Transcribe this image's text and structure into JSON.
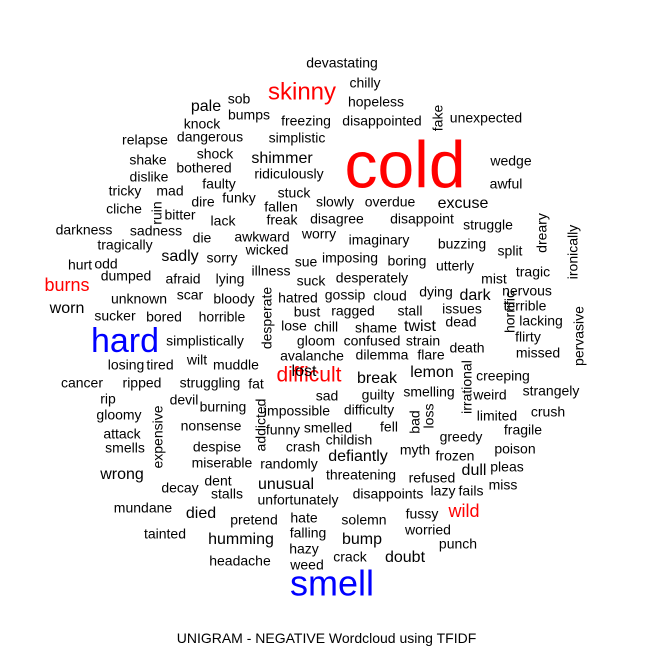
{
  "chart_data": {
    "type": "wordcloud",
    "caption": "UNIGRAM - NEGATIVE Wordcloud using TFIDF",
    "colors": {
      "large": "#ff0000",
      "extra_large": "#0000ff",
      "default": "#000000"
    },
    "words": [
      {
        "text": "cold",
        "color": "red",
        "weight": 6
      },
      {
        "text": "smell",
        "color": "blue",
        "weight": 5
      },
      {
        "text": "hard",
        "color": "blue",
        "weight": 5
      },
      {
        "text": "skinny",
        "color": "red",
        "weight": 4
      },
      {
        "text": "difficult",
        "color": "red",
        "weight": 4
      },
      {
        "text": "burns",
        "color": "red",
        "weight": 3.5
      },
      {
        "text": "wild",
        "color": "red",
        "weight": 3.5
      },
      {
        "text": "devastating",
        "weight": 2
      },
      {
        "text": "chilly",
        "weight": 2
      },
      {
        "text": "hopeless",
        "weight": 2
      },
      {
        "text": "sob",
        "weight": 2
      },
      {
        "text": "pale",
        "weight": 2.5
      },
      {
        "text": "bumps",
        "weight": 2
      },
      {
        "text": "fake",
        "weight": 2
      },
      {
        "text": "unexpected",
        "weight": 2
      },
      {
        "text": "knock",
        "weight": 2
      },
      {
        "text": "freezing",
        "weight": 2
      },
      {
        "text": "disappointed",
        "weight": 2
      },
      {
        "text": "relapse",
        "weight": 2
      },
      {
        "text": "dangerous",
        "weight": 2
      },
      {
        "text": "simplistic",
        "weight": 2
      },
      {
        "text": "shake",
        "weight": 2
      },
      {
        "text": "shock",
        "weight": 2
      },
      {
        "text": "shimmer",
        "weight": 2.5
      },
      {
        "text": "wedge",
        "weight": 2
      },
      {
        "text": "dislike",
        "weight": 2
      },
      {
        "text": "bothered",
        "weight": 2
      },
      {
        "text": "ridiculously",
        "weight": 2
      },
      {
        "text": "tricky",
        "weight": 2
      },
      {
        "text": "mad",
        "weight": 2
      },
      {
        "text": "faulty",
        "weight": 2
      },
      {
        "text": "funky",
        "weight": 2
      },
      {
        "text": "awful",
        "weight": 2
      },
      {
        "text": "ruin",
        "weight": 2
      },
      {
        "text": "dire",
        "weight": 2
      },
      {
        "text": "stuck",
        "weight": 2
      },
      {
        "text": "cliche",
        "weight": 2
      },
      {
        "text": "bitter",
        "weight": 2
      },
      {
        "text": "fallen",
        "weight": 2
      },
      {
        "text": "slowly",
        "weight": 2
      },
      {
        "text": "overdue",
        "weight": 2
      },
      {
        "text": "excuse",
        "weight": 2.5
      },
      {
        "text": "lack",
        "weight": 2
      },
      {
        "text": "freak",
        "weight": 2
      },
      {
        "text": "disagree",
        "weight": 2
      },
      {
        "text": "disappoint",
        "weight": 2
      },
      {
        "text": "struggle",
        "weight": 2
      },
      {
        "text": "darkness",
        "weight": 2
      },
      {
        "text": "sadness",
        "weight": 2
      },
      {
        "text": "awkward",
        "weight": 2
      },
      {
        "text": "worry",
        "weight": 2
      },
      {
        "text": "dreary",
        "weight": 2
      },
      {
        "text": "tragically",
        "weight": 2
      },
      {
        "text": "die",
        "weight": 2
      },
      {
        "text": "wicked",
        "weight": 2
      },
      {
        "text": "imaginary",
        "weight": 2
      },
      {
        "text": "buzzing",
        "weight": 2
      },
      {
        "text": "split",
        "weight": 2
      },
      {
        "text": "ironically",
        "weight": 2
      },
      {
        "text": "sadly",
        "weight": 2.5
      },
      {
        "text": "sorry",
        "weight": 2
      },
      {
        "text": "sue",
        "weight": 2
      },
      {
        "text": "imposing",
        "weight": 2
      },
      {
        "text": "boring",
        "weight": 2
      },
      {
        "text": "utterly",
        "weight": 2
      },
      {
        "text": "hurt",
        "weight": 2
      },
      {
        "text": "odd",
        "weight": 2
      },
      {
        "text": "illness",
        "weight": 2
      },
      {
        "text": "tragic",
        "weight": 2
      },
      {
        "text": "dumped",
        "weight": 2
      },
      {
        "text": "afraid",
        "weight": 2
      },
      {
        "text": "lying",
        "weight": 2
      },
      {
        "text": "suck",
        "weight": 2
      },
      {
        "text": "desperately",
        "weight": 2
      },
      {
        "text": "mist",
        "weight": 2
      },
      {
        "text": "dying",
        "weight": 2
      },
      {
        "text": "nervous",
        "weight": 2
      },
      {
        "text": "scar",
        "weight": 2
      },
      {
        "text": "hatred",
        "weight": 2
      },
      {
        "text": "gossip",
        "weight": 2
      },
      {
        "text": "cloud",
        "weight": 2
      },
      {
        "text": "dark",
        "weight": 2.5
      },
      {
        "text": "horrific",
        "weight": 2
      },
      {
        "text": "terrible",
        "weight": 2
      },
      {
        "text": "unknown",
        "weight": 2
      },
      {
        "text": "bloody",
        "weight": 2
      },
      {
        "text": "worn",
        "weight": 2.5
      },
      {
        "text": "bust",
        "weight": 2
      },
      {
        "text": "ragged",
        "weight": 2
      },
      {
        "text": "stall",
        "weight": 2
      },
      {
        "text": "issues",
        "weight": 2
      },
      {
        "text": "lacking",
        "weight": 2
      },
      {
        "text": "pervasive",
        "weight": 2
      },
      {
        "text": "sucker",
        "weight": 2
      },
      {
        "text": "bored",
        "weight": 2
      },
      {
        "text": "horrible",
        "weight": 2
      },
      {
        "text": "desperate",
        "weight": 2
      },
      {
        "text": "lose",
        "weight": 2
      },
      {
        "text": "chill",
        "weight": 2
      },
      {
        "text": "shame",
        "weight": 2
      },
      {
        "text": "twist",
        "weight": 2.5
      },
      {
        "text": "dead",
        "weight": 2
      },
      {
        "text": "flirty",
        "weight": 2
      },
      {
        "text": "simplistically",
        "weight": 2
      },
      {
        "text": "gloom",
        "weight": 2
      },
      {
        "text": "confused",
        "weight": 2
      },
      {
        "text": "strain",
        "weight": 2
      },
      {
        "text": "death",
        "weight": 2
      },
      {
        "text": "missed",
        "weight": 2
      },
      {
        "text": "wilt",
        "weight": 2
      },
      {
        "text": "avalanche",
        "weight": 2
      },
      {
        "text": "dilemma",
        "weight": 2
      },
      {
        "text": "flare",
        "weight": 2
      },
      {
        "text": "losing",
        "weight": 2
      },
      {
        "text": "tired",
        "weight": 2
      },
      {
        "text": "muddle",
        "weight": 2
      },
      {
        "text": "lost",
        "weight": 2.5
      },
      {
        "text": "lemon",
        "weight": 2.5
      },
      {
        "text": "irrational",
        "weight": 2
      },
      {
        "text": "creeping",
        "weight": 2
      },
      {
        "text": "cancer",
        "weight": 2
      },
      {
        "text": "ripped",
        "weight": 2
      },
      {
        "text": "struggling",
        "weight": 2
      },
      {
        "text": "fat",
        "weight": 2
      },
      {
        "text": "break",
        "weight": 2.5
      },
      {
        "text": "sad",
        "weight": 2
      },
      {
        "text": "guilty",
        "weight": 2
      },
      {
        "text": "smelling",
        "weight": 2
      },
      {
        "text": "weird",
        "weight": 2
      },
      {
        "text": "strangely",
        "weight": 2
      },
      {
        "text": "rip",
        "weight": 2
      },
      {
        "text": "devil",
        "weight": 2
      },
      {
        "text": "burning",
        "weight": 2
      },
      {
        "text": "impossible",
        "weight": 2
      },
      {
        "text": "difficulty",
        "weight": 2
      },
      {
        "text": "loss",
        "weight": 2
      },
      {
        "text": "limited",
        "weight": 2
      },
      {
        "text": "crush",
        "weight": 2
      },
      {
        "text": "gloomy",
        "weight": 2
      },
      {
        "text": "addicted",
        "weight": 2
      },
      {
        "text": "fell",
        "weight": 2
      },
      {
        "text": "bad",
        "weight": 2
      },
      {
        "text": "fragile",
        "weight": 2
      },
      {
        "text": "attack",
        "weight": 2
      },
      {
        "text": "expensive",
        "weight": 2
      },
      {
        "text": "nonsense",
        "weight": 2
      },
      {
        "text": "funny",
        "weight": 2
      },
      {
        "text": "smelled",
        "weight": 2
      },
      {
        "text": "greedy",
        "weight": 2
      },
      {
        "text": "smells",
        "weight": 2
      },
      {
        "text": "despise",
        "weight": 2
      },
      {
        "text": "crash",
        "weight": 2
      },
      {
        "text": "childish",
        "weight": 2
      },
      {
        "text": "myth",
        "weight": 2
      },
      {
        "text": "poison",
        "weight": 2
      },
      {
        "text": "defiantly",
        "weight": 2.5
      },
      {
        "text": "frozen",
        "weight": 2
      },
      {
        "text": "miserable",
        "weight": 2
      },
      {
        "text": "randomly",
        "weight": 2
      },
      {
        "text": "dull",
        "weight": 2.5
      },
      {
        "text": "pleas",
        "weight": 2
      },
      {
        "text": "wrong",
        "weight": 2.5
      },
      {
        "text": "threatening",
        "weight": 2
      },
      {
        "text": "refused",
        "weight": 2
      },
      {
        "text": "decay",
        "weight": 2
      },
      {
        "text": "dent",
        "weight": 2
      },
      {
        "text": "unusual",
        "weight": 2.5
      },
      {
        "text": "lazy",
        "weight": 2
      },
      {
        "text": "fails",
        "weight": 2
      },
      {
        "text": "miss",
        "weight": 2
      },
      {
        "text": "stalls",
        "weight": 2
      },
      {
        "text": "disappoints",
        "weight": 2
      },
      {
        "text": "unfortunately",
        "weight": 2
      },
      {
        "text": "mundane",
        "weight": 2
      },
      {
        "text": "died",
        "weight": 2.5
      },
      {
        "text": "fussy",
        "weight": 2
      },
      {
        "text": "pretend",
        "weight": 2
      },
      {
        "text": "hate",
        "weight": 2
      },
      {
        "text": "solemn",
        "weight": 2
      },
      {
        "text": "worried",
        "weight": 2
      },
      {
        "text": "tainted",
        "weight": 2
      },
      {
        "text": "humming",
        "weight": 2.5
      },
      {
        "text": "falling",
        "weight": 2
      },
      {
        "text": "bump",
        "weight": 2.5
      },
      {
        "text": "punch",
        "weight": 2
      },
      {
        "text": "hazy",
        "weight": 2
      },
      {
        "text": "doubt",
        "weight": 2.5
      },
      {
        "text": "headache",
        "weight": 2
      },
      {
        "text": "crack",
        "weight": 2
      },
      {
        "text": "weed",
        "weight": 2
      }
    ]
  }
}
